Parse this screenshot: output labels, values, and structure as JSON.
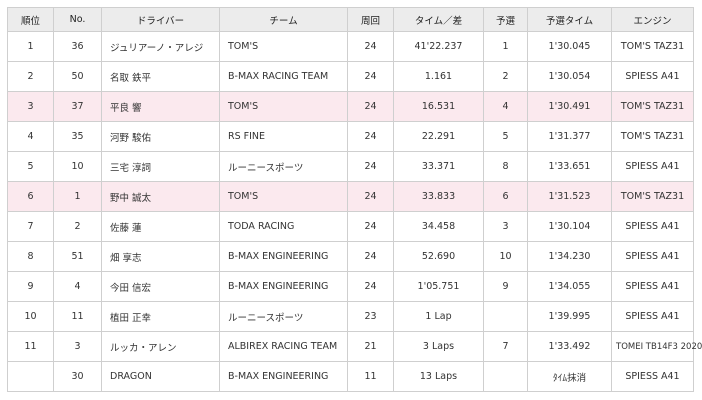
{
  "headers": {
    "pos": "順位",
    "no": "No.",
    "driver": "ドライバー",
    "team": "チーム",
    "laps": "周回",
    "time": "タイム／差",
    "qual": "予選",
    "qual_time": "予選タイム",
    "engine": "エンジン"
  },
  "highlight_color": "#fbe9ee",
  "rows": [
    {
      "pos": "1",
      "no": "36",
      "driver": "ジュリアーノ・アレジ",
      "team": "TOM'S",
      "laps": "24",
      "time": "41'22.237",
      "qual": "1",
      "qual_time": "1'30.045",
      "engine": "TOM'S TAZ31",
      "highlight": false
    },
    {
      "pos": "2",
      "no": "50",
      "driver": "名取 鉄平",
      "team": "B-MAX RACING TEAM",
      "laps": "24",
      "time": "1.161",
      "qual": "2",
      "qual_time": "1'30.054",
      "engine": "SPIESS A41",
      "highlight": false
    },
    {
      "pos": "3",
      "no": "37",
      "driver": "平良 響",
      "team": "TOM'S",
      "laps": "24",
      "time": "16.531",
      "qual": "4",
      "qual_time": "1'30.491",
      "engine": "TOM'S TAZ31",
      "highlight": true
    },
    {
      "pos": "4",
      "no": "35",
      "driver": "河野 駿佑",
      "team": "RS FINE",
      "laps": "24",
      "time": "22.291",
      "qual": "5",
      "qual_time": "1'31.377",
      "engine": "TOM'S TAZ31",
      "highlight": false
    },
    {
      "pos": "5",
      "no": "10",
      "driver": "三宅 淳詞",
      "team": "ルーニースポーツ",
      "laps": "24",
      "time": "33.371",
      "qual": "8",
      "qual_time": "1'33.651",
      "engine": "SPIESS A41",
      "highlight": false
    },
    {
      "pos": "6",
      "no": "1",
      "driver": "野中 誠太",
      "team": "TOM'S",
      "laps": "24",
      "time": "33.833",
      "qual": "6",
      "qual_time": "1'31.523",
      "engine": "TOM'S TAZ31",
      "highlight": true
    },
    {
      "pos": "7",
      "no": "2",
      "driver": "佐藤 蓮",
      "team": "TODA RACING",
      "laps": "24",
      "time": "34.458",
      "qual": "3",
      "qual_time": "1'30.104",
      "engine": "SPIESS A41",
      "highlight": false
    },
    {
      "pos": "8",
      "no": "51",
      "driver": "畑 享志",
      "team": "B-MAX ENGINEERING",
      "laps": "24",
      "time": "52.690",
      "qual": "10",
      "qual_time": "1'34.230",
      "engine": "SPIESS A41",
      "highlight": false
    },
    {
      "pos": "9",
      "no": "4",
      "driver": "今田 信宏",
      "team": "B-MAX ENGINEERING",
      "laps": "24",
      "time": "1'05.751",
      "qual": "9",
      "qual_time": "1'34.055",
      "engine": "SPIESS A41",
      "highlight": false
    },
    {
      "pos": "10",
      "no": "11",
      "driver": "植田 正幸",
      "team": "ルーニースポーツ",
      "laps": "23",
      "time": "1 Lap",
      "qual": "",
      "qual_time": "1'39.995",
      "engine": "SPIESS A41",
      "highlight": false
    },
    {
      "pos": "11",
      "no": "3",
      "driver": "ルッカ・アレン",
      "team": "ALBIREX RACING TEAM",
      "laps": "21",
      "time": "3 Laps",
      "qual": "7",
      "qual_time": "1'33.492",
      "engine": "TOMEI TB14F3 2020",
      "highlight": false
    },
    {
      "pos": "",
      "no": "30",
      "driver": "DRAGON",
      "team": "B-MAX ENGINEERING",
      "laps": "11",
      "time": "13 Laps",
      "qual": "",
      "qual_time": "ﾀｲﾑ抹消",
      "engine": "SPIESS A41",
      "highlight": false
    }
  ]
}
